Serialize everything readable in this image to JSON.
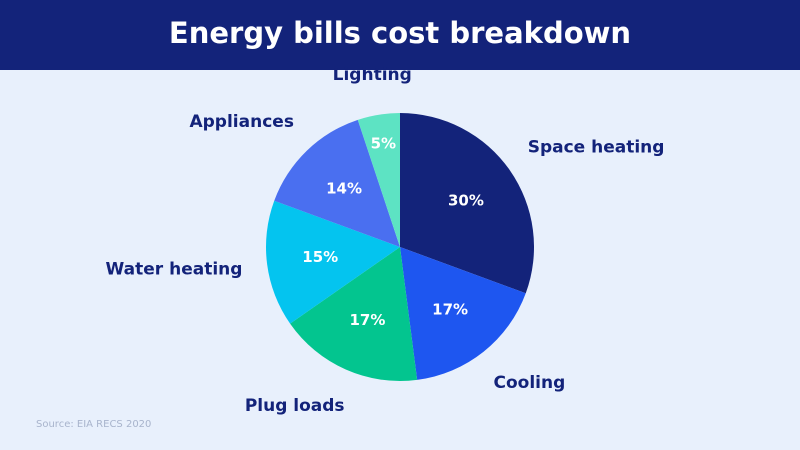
{
  "chart_data": {
    "type": "pie",
    "title": "Energy bills cost breakdown",
    "categories": [
      "Space heating",
      "Cooling",
      "Plug loads",
      "Water heating",
      "Appliances",
      "Lighting"
    ],
    "values": [
      30,
      17,
      17,
      15,
      14,
      5
    ],
    "value_labels": [
      "30%",
      "17%",
      "17%",
      "15%",
      "14%",
      "5%"
    ],
    "colors": [
      "#13237a",
      "#1e56f0",
      "#03c58f",
      "#04c4ef",
      "#4a6ff0",
      "#5de3c3"
    ],
    "source": "Source: EIA RECS 2020"
  }
}
